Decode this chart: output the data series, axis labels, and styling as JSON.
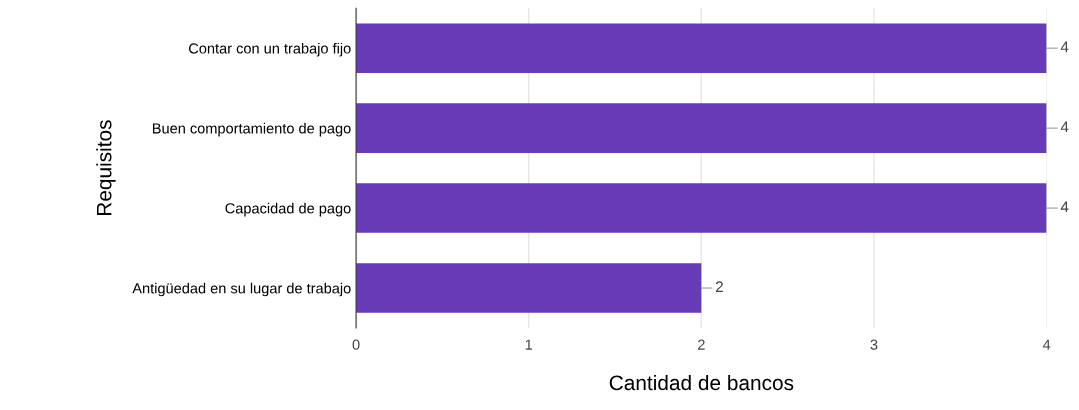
{
  "chart_data": {
    "type": "bar",
    "orientation": "horizontal",
    "categories": [
      "Contar con un trabajo fijo",
      "Buen comportamiento de pago",
      "Capacidad de pago",
      "Antigüedad en su lugar de trabajo"
    ],
    "values": [
      4,
      4,
      4,
      2
    ],
    "color": "#673ab7",
    "xlabel": "Cantidad de bancos",
    "ylabel": "Requisitos",
    "xlim": [
      0,
      4
    ],
    "xticks": [
      0,
      1,
      2,
      3,
      4
    ],
    "grid": "x",
    "data_labels": true
  }
}
